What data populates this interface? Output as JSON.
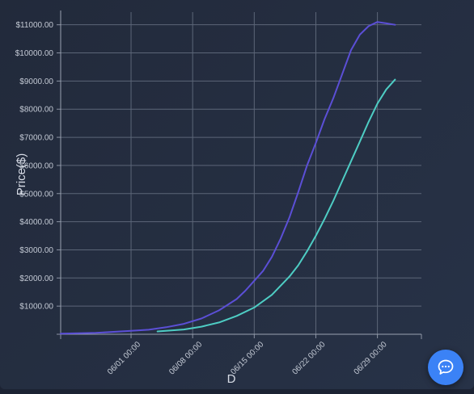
{
  "chart_data": {
    "type": "line",
    "ylabel": "Price($)",
    "xlabel": "D",
    "xlim": [
      "2023-05-24",
      "2023-07-04"
    ],
    "ylim": [
      0,
      11450
    ],
    "x_ticks": [
      "06/01 00:00",
      "06/08 00:00",
      "06/15 00:00",
      "06/22 00:00",
      "06/29 00:00"
    ],
    "y_ticks": [
      "$1000.00",
      "$2000.00",
      "$3000.00",
      "$4000.00",
      "$5000.00",
      "$6000.00",
      "$7000.00",
      "$8000.00",
      "$9000.00",
      "$10000.00",
      "$11000.00"
    ],
    "grid": true,
    "series": [
      {
        "color": "#5b4fd6",
        "points": [
          [
            "2023-05-24",
            20
          ],
          [
            "2023-05-28",
            50
          ],
          [
            "2023-06-01",
            120
          ],
          [
            "2023-06-03",
            160
          ],
          [
            "2023-06-05",
            250
          ],
          [
            "2023-06-07",
            370
          ],
          [
            "2023-06-09",
            560
          ],
          [
            "2023-06-11",
            850
          ],
          [
            "2023-06-13",
            1250
          ],
          [
            "2023-06-14",
            1550
          ],
          [
            "2023-06-15",
            1900
          ],
          [
            "2023-06-16",
            2250
          ],
          [
            "2023-06-17",
            2750
          ],
          [
            "2023-06-18",
            3400
          ],
          [
            "2023-06-19",
            4150
          ],
          [
            "2023-06-20",
            5050
          ],
          [
            "2023-06-21",
            6000
          ],
          [
            "2023-06-22",
            6800
          ],
          [
            "2023-06-23",
            7650
          ],
          [
            "2023-06-24",
            8400
          ],
          [
            "2023-06-25",
            9250
          ],
          [
            "2023-06-26",
            10100
          ],
          [
            "2023-06-27",
            10650
          ],
          [
            "2023-06-28",
            10950
          ],
          [
            "2023-06-29",
            11100
          ],
          [
            "2023-06-30",
            11050
          ],
          [
            "2023-07-01",
            11000
          ]
        ]
      },
      {
        "color": "#4ecdc4",
        "points": [
          [
            "2023-06-04",
            100
          ],
          [
            "2023-06-07",
            170
          ],
          [
            "2023-06-09",
            270
          ],
          [
            "2023-06-11",
            420
          ],
          [
            "2023-06-13",
            650
          ],
          [
            "2023-06-15",
            950
          ],
          [
            "2023-06-17",
            1400
          ],
          [
            "2023-06-19",
            2050
          ],
          [
            "2023-06-20",
            2450
          ],
          [
            "2023-06-21",
            2950
          ],
          [
            "2023-06-22",
            3500
          ],
          [
            "2023-06-23",
            4100
          ],
          [
            "2023-06-24",
            4750
          ],
          [
            "2023-06-25",
            5450
          ],
          [
            "2023-06-26",
            6150
          ],
          [
            "2023-06-27",
            6850
          ],
          [
            "2023-06-28",
            7550
          ],
          [
            "2023-06-29",
            8200
          ],
          [
            "2023-06-30",
            8700
          ],
          [
            "2023-07-01",
            9050
          ]
        ]
      }
    ]
  },
  "chat_button": {
    "icon": "chat-bubble-icon"
  }
}
